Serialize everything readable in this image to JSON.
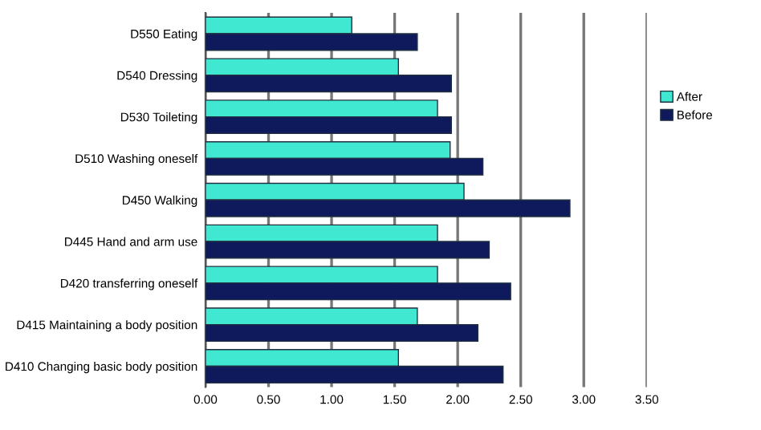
{
  "chart_data": {
    "type": "bar",
    "orientation": "horizontal",
    "categories": [
      "D550 Eating",
      "D540 Dressing",
      "D530 Toileting",
      "D510 Washing oneself",
      "D450 Walking",
      "D445 Hand and arm use",
      "D420 transferring oneself",
      "D415 Maintaining a body position",
      "D410 Changing basic body position"
    ],
    "series": [
      {
        "name": "After",
        "color": "#40e8d2",
        "values": [
          1.16,
          1.53,
          1.84,
          1.94,
          2.05,
          1.84,
          1.84,
          1.68,
          1.53
        ]
      },
      {
        "name": "Before",
        "color": "#0f1a5c",
        "values": [
          1.68,
          1.95,
          1.95,
          2.2,
          2.89,
          2.25,
          2.42,
          2.16,
          2.36
        ]
      }
    ],
    "xlim": [
      0,
      3.5
    ],
    "xticks": [
      {
        "value": 0,
        "label": "0.00"
      },
      {
        "value": 0.5,
        "label": "0.50"
      },
      {
        "value": 1,
        "label": "1.00"
      },
      {
        "value": 1.5,
        "label": "1.50"
      },
      {
        "value": 2,
        "label": "2.00"
      },
      {
        "value": 2.5,
        "label": "2.50"
      },
      {
        "value": 3,
        "label": "3.00"
      },
      {
        "value": 3.5,
        "label": "3.50"
      }
    ],
    "grid": "x",
    "legend": "right"
  }
}
